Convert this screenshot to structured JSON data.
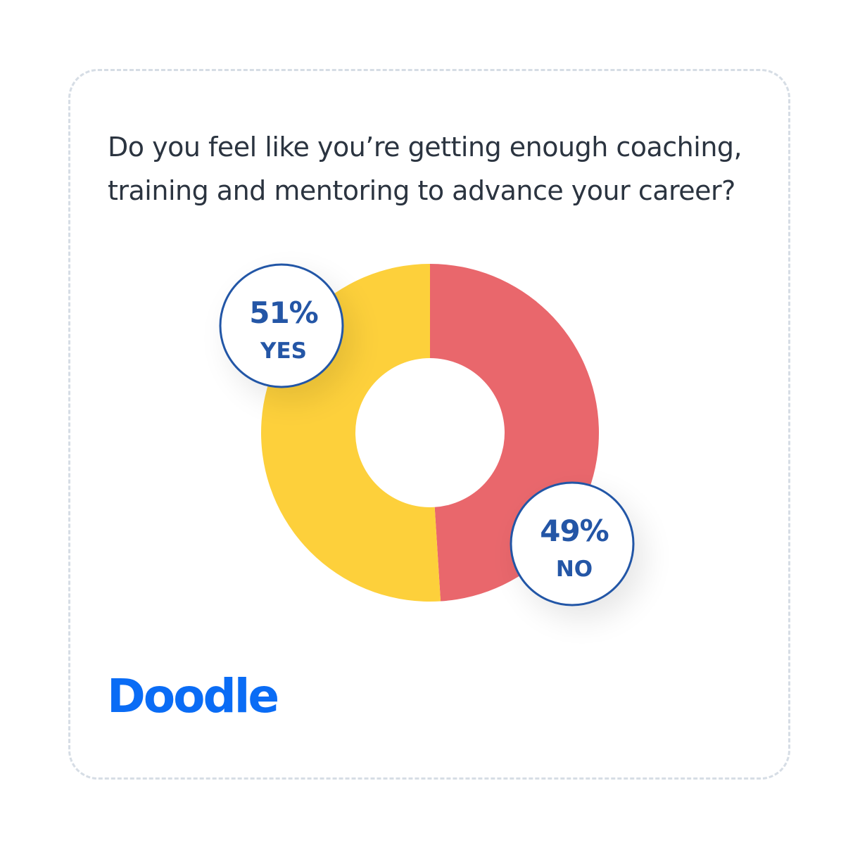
{
  "question": {
    "line1": "Do you feel like you’re getting enough coaching,",
    "line2": "training and mentoring to advance your career?"
  },
  "chart_data": {
    "type": "pie",
    "title": "Do you feel like you’re getting enough coaching, training and mentoring to advance your career?",
    "donut": true,
    "unit": "%",
    "categories": [
      "NO",
      "YES"
    ],
    "values": [
      49,
      51
    ],
    "colors": [
      "#e9676c",
      "#fdd03b"
    ],
    "data_labels": [
      {
        "category": "NO",
        "percent": "49%",
        "label": "NO"
      },
      {
        "category": "YES",
        "percent": "51%",
        "label": "YES"
      }
    ],
    "label_color": "#2456a6"
  },
  "brand": {
    "logo_text": "Doodle",
    "color": "#0a6cf5"
  },
  "colors": {
    "card_border": "#d6dde5",
    "question_text": "#2b3440"
  }
}
